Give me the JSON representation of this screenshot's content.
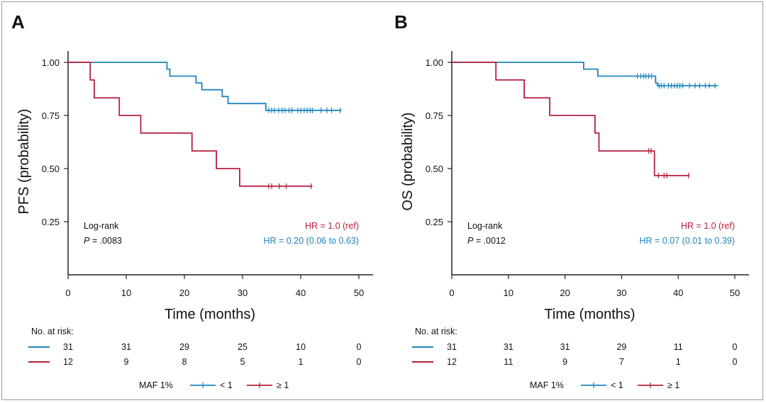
{
  "colors": {
    "low": "#1d84c1",
    "high": "#b5203f",
    "axis": "#222222"
  },
  "chart_data": [
    {
      "type": "line",
      "panel": "A",
      "ylabel": "PFS (probability)",
      "xlabel": "Time (months)",
      "xlim": [
        0,
        50
      ],
      "ylim": [
        0,
        1.05
      ],
      "x_ticks": [
        "0",
        "10",
        "20",
        "30",
        "40",
        "50"
      ],
      "x_tick_values": [
        0,
        10,
        20,
        30,
        40,
        50
      ],
      "y_ticks": [
        "1.00",
        "0.75",
        "0.50",
        "0.25"
      ],
      "y_tick_values": [
        1.0,
        0.75,
        0.5,
        0.25
      ],
      "log_rank": {
        "label": "Log-rank",
        "p_prefix": "P",
        "p_value": " = .0083"
      },
      "hr_ref": "HR = 1.0 (ref)",
      "hr_low": "HR = 0.20 (0.06 to 0.63)",
      "series": [
        {
          "name": "< 1",
          "color_key": "low",
          "steps": [
            [
              0,
              1.0
            ],
            [
              17,
              1.0
            ],
            [
              17,
              0.968
            ],
            [
              17.5,
              0.968
            ],
            [
              17.5,
              0.935
            ],
            [
              22,
              0.935
            ],
            [
              22,
              0.903
            ],
            [
              23,
              0.903
            ],
            [
              23,
              0.871
            ],
            [
              26.5,
              0.871
            ],
            [
              26.5,
              0.839
            ],
            [
              27.5,
              0.839
            ],
            [
              27.5,
              0.806
            ],
            [
              34,
              0.806
            ],
            [
              34,
              0.774
            ],
            [
              47,
              0.774
            ]
          ],
          "censors": [
            [
              34.5,
              0.774
            ],
            [
              35,
              0.774
            ],
            [
              35.5,
              0.774
            ],
            [
              36.2,
              0.774
            ],
            [
              36.8,
              0.774
            ],
            [
              37.3,
              0.774
            ],
            [
              38,
              0.774
            ],
            [
              38.5,
              0.774
            ],
            [
              39.5,
              0.774
            ],
            [
              40,
              0.774
            ],
            [
              40.6,
              0.774
            ],
            [
              41.1,
              0.774
            ],
            [
              41.6,
              0.774
            ],
            [
              42,
              0.774
            ],
            [
              43.5,
              0.774
            ],
            [
              44.5,
              0.774
            ],
            [
              45.3,
              0.774
            ],
            [
              46.8,
              0.774
            ]
          ]
        },
        {
          "name": "≥ 1",
          "color_key": "high",
          "steps": [
            [
              0,
              1.0
            ],
            [
              3.8,
              1.0
            ],
            [
              3.8,
              0.917
            ],
            [
              4.5,
              0.917
            ],
            [
              4.5,
              0.833
            ],
            [
              8.8,
              0.833
            ],
            [
              8.8,
              0.75
            ],
            [
              12.5,
              0.75
            ],
            [
              12.5,
              0.667
            ],
            [
              21.3,
              0.667
            ],
            [
              21.3,
              0.583
            ],
            [
              25.5,
              0.583
            ],
            [
              25.5,
              0.5
            ],
            [
              29.5,
              0.5
            ],
            [
              29.5,
              0.417
            ],
            [
              42,
              0.417
            ]
          ],
          "censors": [
            [
              34.5,
              0.417
            ],
            [
              35,
              0.417
            ],
            [
              36.3,
              0.417
            ],
            [
              37.5,
              0.417
            ],
            [
              41.8,
              0.417
            ]
          ]
        }
      ],
      "risk_table": {
        "title": "No. at risk:",
        "rows": [
          {
            "color_key": "low",
            "counts": [
              "31",
              "31",
              "29",
              "25",
              "10",
              "0"
            ]
          },
          {
            "color_key": "high",
            "counts": [
              "12",
              "9",
              "8",
              "5",
              "1",
              "0"
            ]
          }
        ]
      },
      "legend": {
        "title": "MAF 1%",
        "entries": [
          "< 1",
          "≥ 1"
        ]
      }
    },
    {
      "type": "line",
      "panel": "B",
      "ylabel": "OS (probability)",
      "xlabel": "Time (months)",
      "xlim": [
        0,
        50
      ],
      "ylim": [
        0,
        1.05
      ],
      "x_ticks": [
        "0",
        "10",
        "20",
        "30",
        "40",
        "50"
      ],
      "x_tick_values": [
        0,
        10,
        20,
        30,
        40,
        50
      ],
      "y_ticks": [
        "1.00",
        "0.75",
        "0.50",
        "0.25"
      ],
      "y_tick_values": [
        1.0,
        0.75,
        0.5,
        0.25
      ],
      "log_rank": {
        "label": "Log-rank",
        "p_prefix": "P",
        "p_value": " = .0012"
      },
      "hr_ref": "HR = 1.0 (ref)",
      "hr_low": "HR = 0.07 (0.01 to 0.39)",
      "series": [
        {
          "name": "< 1",
          "color_key": "low",
          "steps": [
            [
              0,
              1.0
            ],
            [
              23.3,
              1.0
            ],
            [
              23.3,
              0.968
            ],
            [
              25.8,
              0.968
            ],
            [
              25.8,
              0.935
            ],
            [
              36,
              0.935
            ],
            [
              36,
              0.903
            ],
            [
              36.3,
              0.903
            ],
            [
              36.3,
              0.89
            ],
            [
              47,
              0.89
            ]
          ],
          "censors": [
            [
              32.8,
              0.935
            ],
            [
              33.4,
              0.935
            ],
            [
              33.9,
              0.935
            ],
            [
              34.3,
              0.935
            ],
            [
              34.8,
              0.935
            ],
            [
              35.3,
              0.935
            ],
            [
              36.6,
              0.89
            ],
            [
              37,
              0.89
            ],
            [
              37.5,
              0.89
            ],
            [
              38.3,
              0.89
            ],
            [
              38.8,
              0.89
            ],
            [
              39.3,
              0.89
            ],
            [
              39.8,
              0.89
            ],
            [
              40.3,
              0.89
            ],
            [
              40.8,
              0.89
            ],
            [
              42,
              0.89
            ],
            [
              43,
              0.89
            ],
            [
              43.8,
              0.89
            ],
            [
              44.8,
              0.89
            ],
            [
              45.5,
              0.89
            ],
            [
              46.5,
              0.89
            ]
          ]
        },
        {
          "name": "≥ 1",
          "color_key": "high",
          "steps": [
            [
              0,
              1.0
            ],
            [
              7.8,
              1.0
            ],
            [
              7.8,
              0.917
            ],
            [
              12.8,
              0.917
            ],
            [
              12.8,
              0.833
            ],
            [
              17.3,
              0.833
            ],
            [
              17.3,
              0.75
            ],
            [
              25.3,
              0.75
            ],
            [
              25.3,
              0.667
            ],
            [
              26,
              0.667
            ],
            [
              26,
              0.583
            ],
            [
              35.8,
              0.583
            ],
            [
              35.8,
              0.467
            ],
            [
              42,
              0.467
            ]
          ],
          "censors": [
            [
              34.8,
              0.583
            ],
            [
              35.2,
              0.583
            ],
            [
              36.5,
              0.467
            ],
            [
              37.5,
              0.467
            ],
            [
              38,
              0.467
            ],
            [
              41.8,
              0.467
            ]
          ]
        }
      ],
      "risk_table": {
        "title": "No. at risk:",
        "rows": [
          {
            "color_key": "low",
            "counts": [
              "31",
              "31",
              "31",
              "29",
              "11",
              "0"
            ]
          },
          {
            "color_key": "high",
            "counts": [
              "12",
              "11",
              "9",
              "7",
              "1",
              "0"
            ]
          }
        ]
      },
      "legend": {
        "title": "MAF 1%",
        "entries": [
          "< 1",
          "≥ 1"
        ]
      }
    }
  ]
}
